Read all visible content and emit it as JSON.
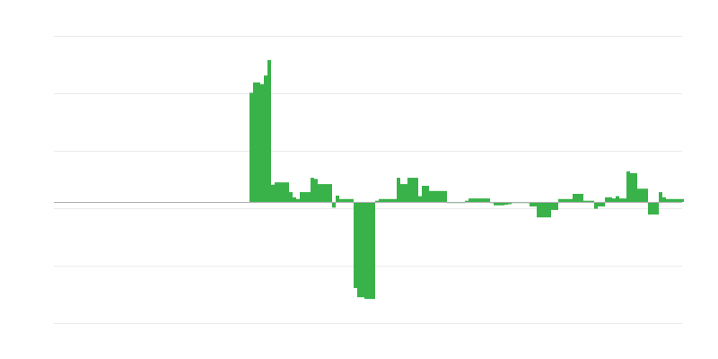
{
  "chart_data": {
    "type": "bar",
    "title": "",
    "xlabel": "",
    "ylabel": "",
    "ylim": [
      -2.11,
      2.89
    ],
    "grid": true,
    "legend": "none",
    "colors": {
      "bar": "#39b24a",
      "grid": "#ebebeb",
      "baseline": "#b0b0b0"
    },
    "values": [
      1.9,
      2.08,
      2.08,
      2.05,
      2.2,
      2.47,
      0.3,
      0.34,
      0.34,
      0.34,
      0.34,
      0.17,
      0.08,
      0.05,
      0.17,
      0.17,
      0.17,
      0.42,
      0.4,
      0.31,
      0.31,
      0.31,
      0.31,
      -0.1,
      0.11,
      0.05,
      0.05,
      0.05,
      0.05,
      -1.5,
      -1.66,
      -1.66,
      -1.69,
      -1.69,
      -1.69,
      0.02,
      0.05,
      0.05,
      0.05,
      0.05,
      0.05,
      0.42,
      0.31,
      0.31,
      0.42,
      0.42,
      0.42,
      0.1,
      0.28,
      0.28,
      0.19,
      0.19,
      0.19,
      0.19,
      0.19,
      -0.02,
      -0.02,
      -0.02,
      -0.02,
      -0.02,
      0.02,
      0.06,
      0.06,
      0.06,
      0.06,
      0.06,
      0.06,
      -0.02,
      -0.06,
      -0.06,
      -0.06,
      -0.05,
      -0.04,
      -0.02,
      -0.02,
      -0.02,
      -0.02,
      -0.02,
      -0.08,
      -0.08,
      -0.27,
      -0.27,
      -0.27,
      -0.27,
      -0.14,
      -0.14,
      0.05,
      0.05,
      0.05,
      0.05,
      0.14,
      0.14,
      0.14,
      0.02,
      0.02,
      0.02,
      -0.12,
      -0.08,
      -0.08,
      0.08,
      0.08,
      0.06,
      0.1,
      0.06,
      0.06,
      0.53,
      0.5,
      0.5,
      0.23,
      0.23,
      0.23,
      -0.22,
      -0.22,
      -0.22,
      0.17,
      0.08,
      0.05,
      0.05,
      0.05,
      0.05,
      0.05
    ]
  }
}
